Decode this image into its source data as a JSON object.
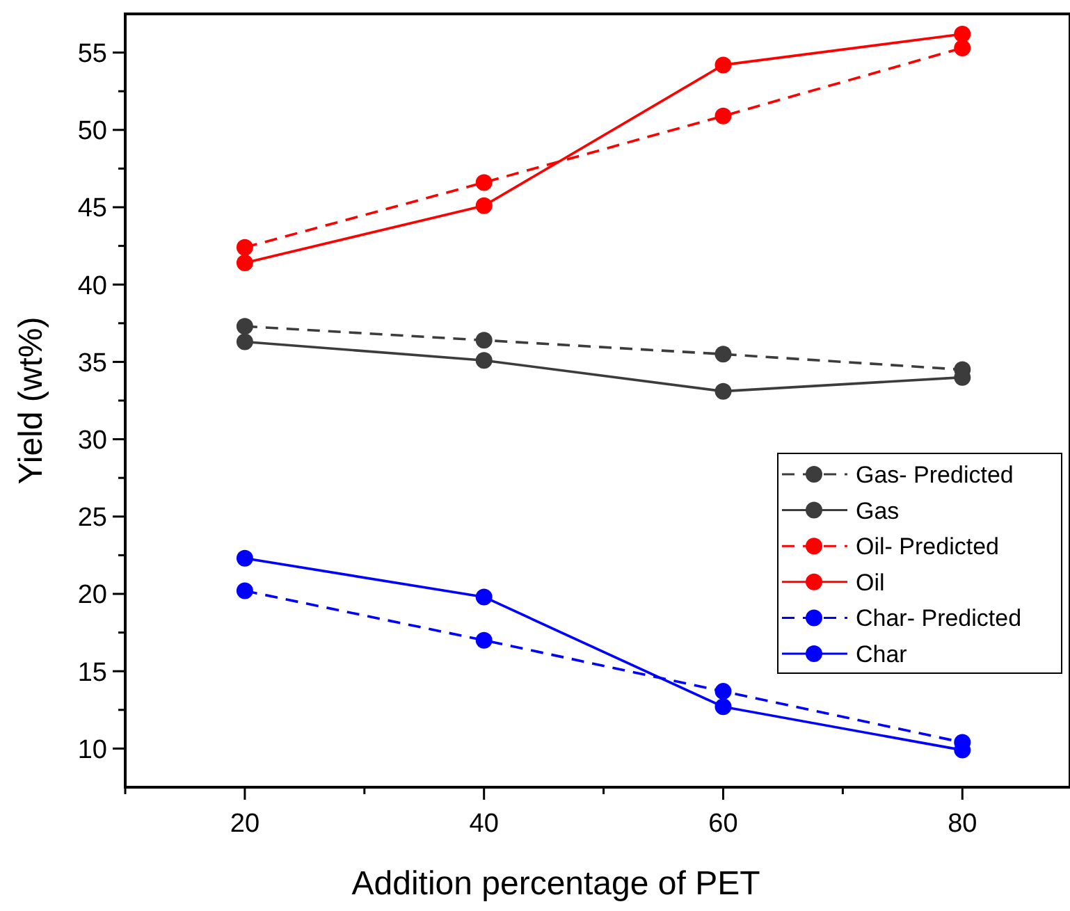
{
  "chart_data": {
    "type": "line",
    "xlabel": "Addition percentage of PET",
    "ylabel": "Yield (wt%)",
    "x": [
      20,
      40,
      60,
      80
    ],
    "xlim": [
      10,
      89
    ],
    "ylim": [
      7.5,
      57.5
    ],
    "xticks": [
      {
        "value": 10,
        "label": null
      },
      20,
      {
        "value": 30,
        "label": null
      },
      40,
      {
        "value": 50,
        "label": null
      },
      60,
      {
        "value": 70,
        "label": null
      },
      80
    ],
    "yticks": [
      10,
      {
        "value": 12.5,
        "label": null
      },
      15,
      {
        "value": 17.5,
        "label": null
      },
      20,
      {
        "value": 22.5,
        "label": null
      },
      25,
      {
        "value": 27.5,
        "label": null
      },
      30,
      {
        "value": 32.5,
        "label": null
      },
      35,
      {
        "value": 37.5,
        "label": null
      },
      40,
      {
        "value": 42.5,
        "label": null
      },
      45,
      {
        "value": 47.5,
        "label": null
      },
      50,
      {
        "value": 52.5,
        "label": null
      },
      55
    ],
    "marker": "circle",
    "grid": false,
    "legend": "right",
    "series": [
      {
        "name": "Gas- Predicted",
        "color": "#3c3c3c",
        "line_style": "dashed",
        "values": [
          37.3,
          36.4,
          35.5,
          34.5
        ]
      },
      {
        "name": "Gas",
        "color": "#3c3c3c",
        "line_style": "solid",
        "values": [
          36.3,
          35.1,
          33.1,
          34.0
        ]
      },
      {
        "name": "Oil- Predicted",
        "color": "#ff0000",
        "line_style": "dashed",
        "values": [
          42.4,
          46.6,
          50.9,
          55.3
        ]
      },
      {
        "name": "Oil",
        "color": "#ff0000",
        "line_style": "solid",
        "values": [
          41.4,
          45.1,
          54.2,
          56.2
        ]
      },
      {
        "name": "Char- Predicted",
        "color": "#0000ff",
        "line_style": "dashed",
        "values": [
          20.2,
          17.0,
          13.7,
          10.4
        ]
      },
      {
        "name": "Char",
        "color": "#0000ff",
        "line_style": "solid",
        "values": [
          22.3,
          19.8,
          12.7,
          9.9
        ]
      }
    ]
  }
}
